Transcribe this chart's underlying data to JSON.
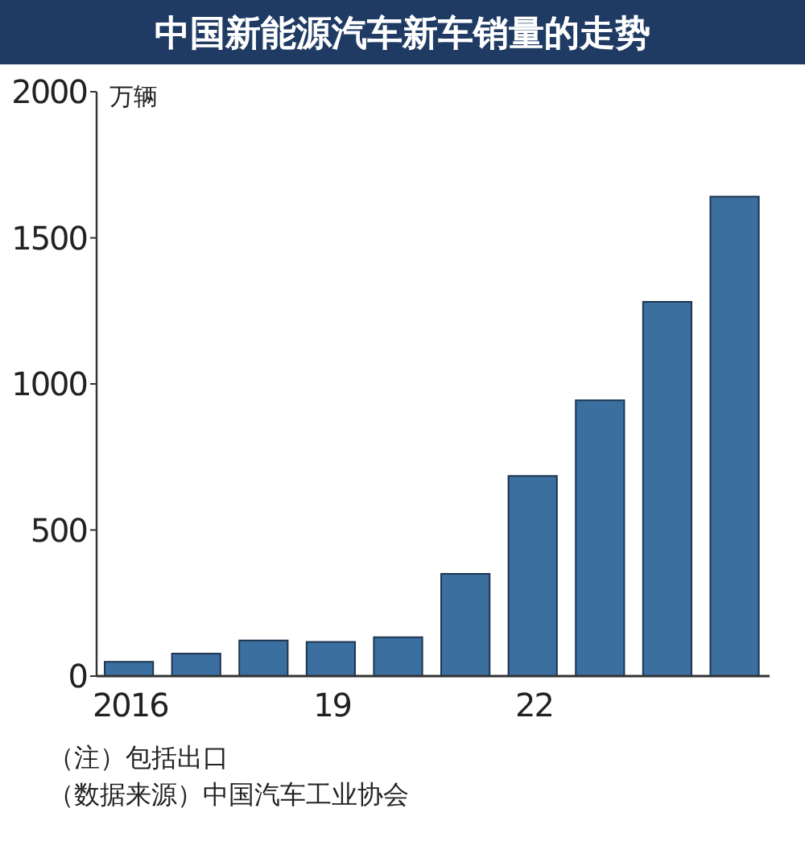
{
  "chart_data": {
    "type": "bar",
    "title": "中国新能源汽车新车销量的走势",
    "ylabel": "万辆",
    "categories": [
      "2016",
      null,
      null,
      "19",
      null,
      null,
      "22",
      null,
      null,
      null
    ],
    "values": [
      49,
      77,
      122,
      117,
      133,
      350,
      685,
      944,
      1281,
      1641
    ],
    "color": "#3b6fa0",
    "ylim": [
      0,
      2000
    ],
    "yticks": [
      0,
      500,
      1000,
      1500,
      2000
    ],
    "grid": false,
    "annotations": [
      "（注）包括出口",
      "（数据来源）中国汽车工业协会"
    ]
  }
}
